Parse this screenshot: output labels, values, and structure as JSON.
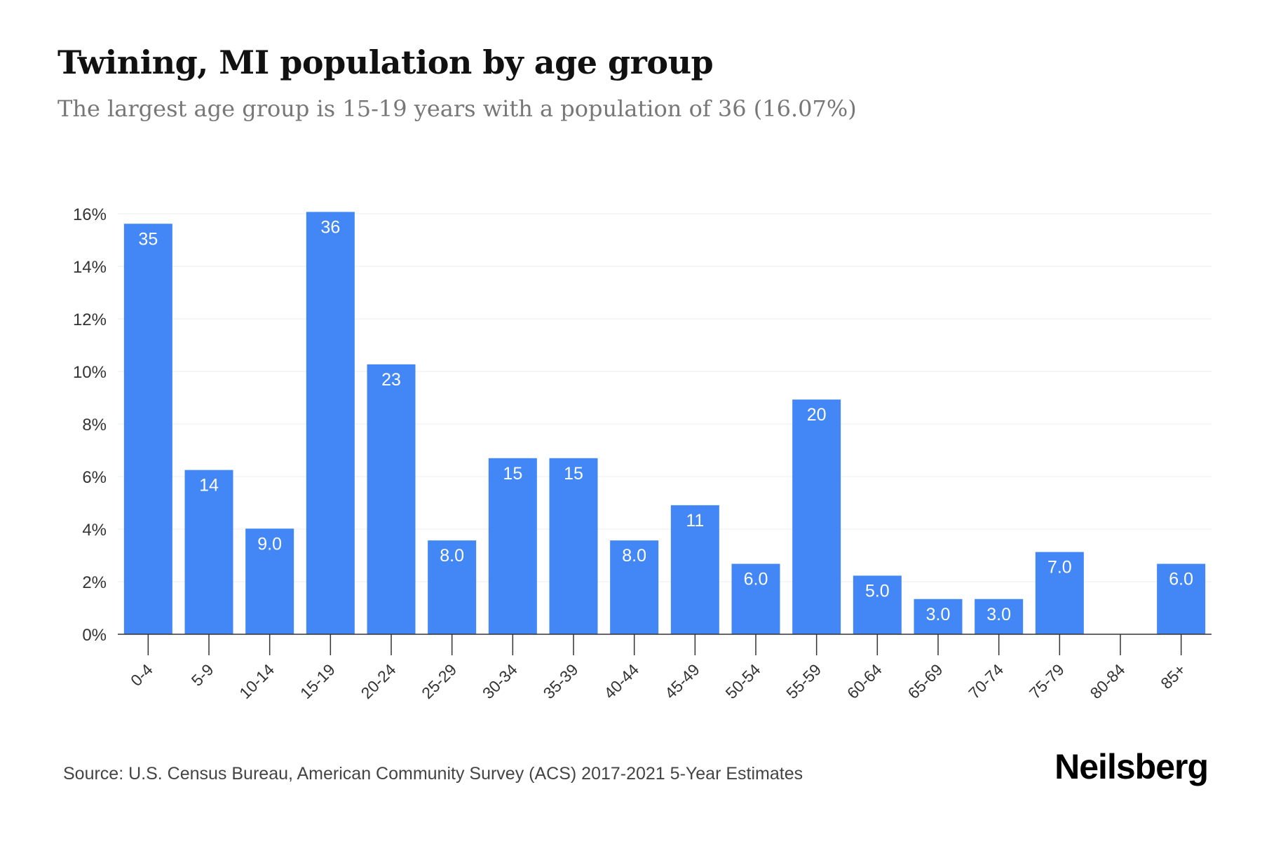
{
  "header": {
    "title": "Twining, MI population by age group",
    "subtitle": "The largest age group is 15-19 years with a population of 36 (16.07%)"
  },
  "footer": {
    "source": "Source: U.S. Census Bureau, American Community Survey (ACS) 2017-2021 5-Year Estimates",
    "brand": "Neilsberg"
  },
  "colors": {
    "bar": "#4287f5",
    "bar_label": "#ffffff",
    "grid": "#ececec",
    "axis": "#333333",
    "tick_text": "#333333"
  },
  "chart_data": {
    "type": "bar",
    "title": "Twining, MI population by age group",
    "subtitle": "The largest age group is 15-19 years with a population of 36 (16.07%)",
    "xlabel": "",
    "ylabel": "",
    "categories": [
      "0-4",
      "5-9",
      "10-14",
      "15-19",
      "20-24",
      "25-29",
      "30-34",
      "35-39",
      "40-44",
      "45-49",
      "50-54",
      "55-59",
      "60-64",
      "65-69",
      "70-74",
      "75-79",
      "80-84",
      "85+"
    ],
    "values": [
      15.62,
      6.25,
      4.02,
      16.07,
      10.27,
      3.57,
      6.7,
      6.7,
      3.57,
      4.91,
      2.68,
      8.93,
      2.23,
      1.34,
      1.34,
      3.13,
      0,
      2.68
    ],
    "data_labels": [
      "35",
      "14",
      "9.0",
      "36",
      "23",
      "8.0",
      "15",
      "15",
      "8.0",
      "11",
      "6.0",
      "20",
      "5.0",
      "3.0",
      "3.0",
      "7.0",
      "",
      "6.0"
    ],
    "ylim": [
      0,
      16
    ],
    "yticks": [
      0,
      2,
      4,
      6,
      8,
      10,
      12,
      14,
      16
    ],
    "ytick_labels": [
      "0%",
      "2%",
      "4%",
      "6%",
      "8%",
      "10%",
      "12%",
      "14%",
      "16%"
    ],
    "grid": true,
    "legend": "none"
  }
}
